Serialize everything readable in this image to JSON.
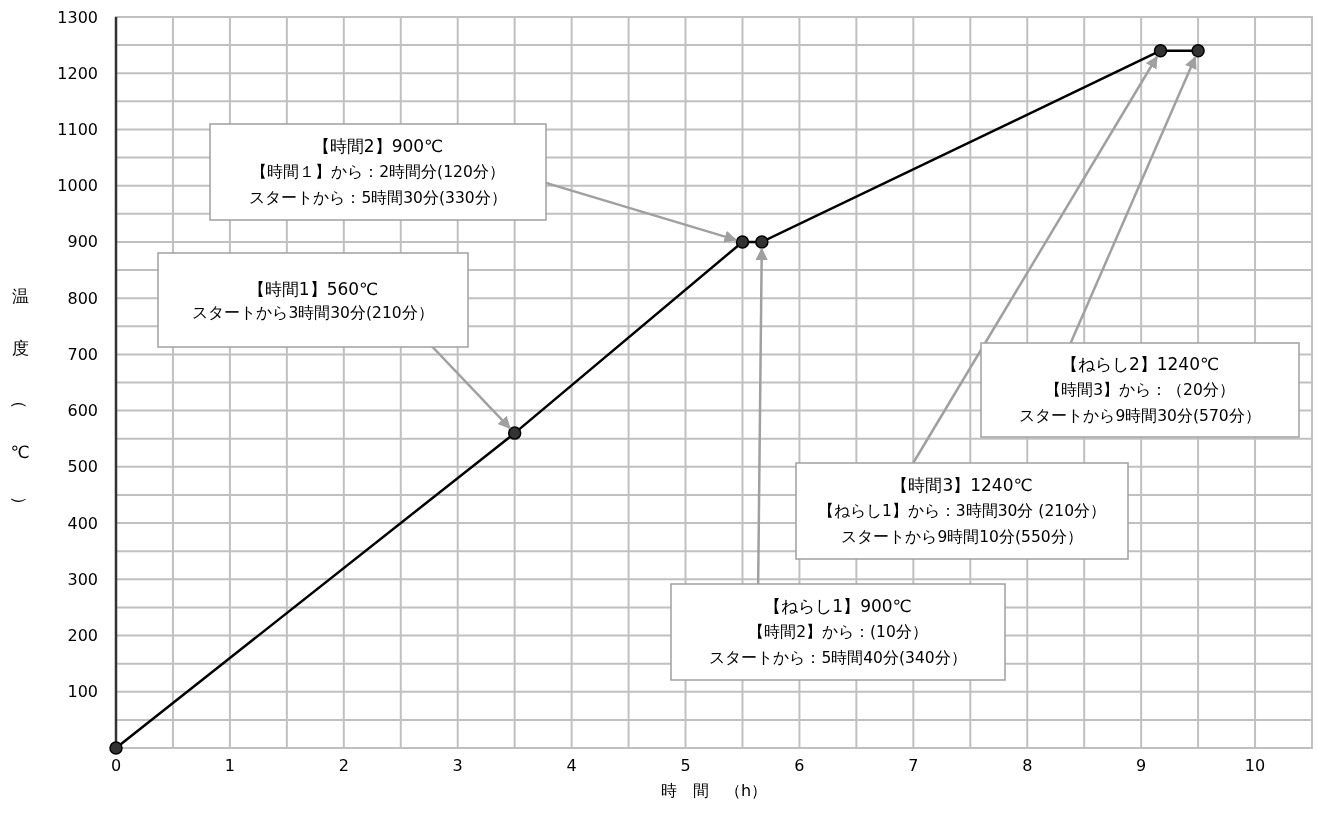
{
  "chart_data": {
    "type": "line",
    "xlabel": "時　間　（h）",
    "ylabel": "温度（℃）",
    "x": [
      0,
      3.5,
      5.5,
      5.67,
      9.17,
      9.5
    ],
    "series": [
      {
        "color": "#000000",
        "values": [
          0,
          560,
          900,
          900,
          1240,
          1240
        ]
      }
    ],
    "xlim": [
      0,
      10.5
    ],
    "ylim": [
      0,
      1300
    ],
    "xticks": [
      0,
      {
        "value": 0.5,
        "label": null
      },
      1,
      {
        "value": 1.5,
        "label": null
      },
      2,
      {
        "value": 2.5,
        "label": null
      },
      3,
      {
        "value": 3.5,
        "label": null
      },
      4,
      {
        "value": 4.5,
        "label": null
      },
      5,
      {
        "value": 5.5,
        "label": null
      },
      6,
      {
        "value": 6.5,
        "label": null
      },
      7,
      {
        "value": 7.5,
        "label": null
      },
      8,
      {
        "value": 8.5,
        "label": null
      },
      9,
      {
        "value": 9.5,
        "label": null
      },
      10,
      {
        "value": 10.5,
        "label": null
      }
    ],
    "yticks": [
      {
        "value": 0,
        "label": null
      },
      {
        "value": 50,
        "label": null
      },
      100,
      {
        "value": 150,
        "label": null
      },
      200,
      {
        "value": 250,
        "label": null
      },
      300,
      {
        "value": 350,
        "label": null
      },
      400,
      {
        "value": 450,
        "label": null
      },
      500,
      {
        "value": 550,
        "label": null
      },
      600,
      {
        "value": 650,
        "label": null
      },
      700,
      {
        "value": 750,
        "label": null
      },
      800,
      {
        "value": 850,
        "label": null
      },
      900,
      {
        "value": 950,
        "label": null
      },
      1000,
      {
        "value": 1050,
        "label": null
      },
      1100,
      {
        "value": 1150,
        "label": null
      },
      1200,
      {
        "value": 1250,
        "label": null
      },
      1300
    ],
    "grid": true,
    "marker": "circle",
    "line_style": "solid",
    "annotations": [
      {
        "text": "【時間1】560℃",
        "x": 3.5,
        "y": 560
      },
      "スタートから3時間30分(210分）",
      {
        "text": "【時間2】900℃",
        "x": 5.5,
        "y": 900
      },
      "【時間１】から：2時間分(120分）",
      "スタートから：5時間30分(330分）",
      {
        "text": "【ねらし1】900℃",
        "x": 5.67,
        "y": 900
      },
      "【時間2】から：(10分）",
      "スタートから：5時間40分(340分）",
      {
        "text": "【時間3】1240℃",
        "x": 9.17,
        "y": 1240
      },
      "【ねらし1】から：3時間30分 (210分）",
      "スタートから9時間10分(550分）",
      {
        "text": "【ねらし2】1240℃",
        "x": 9.5,
        "y": 1240
      },
      "【時間3】から：（20分）",
      "スタートから9時間30分(570分）"
    ]
  }
}
